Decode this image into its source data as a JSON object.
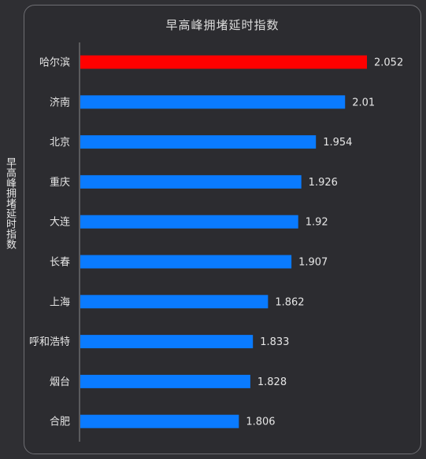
{
  "chart_data": {
    "type": "bar",
    "orientation": "horizontal",
    "title": "早高峰拥堵延时指数",
    "ylabel": "早高峰拥堵延时指数",
    "xlabel": "",
    "categories": [
      "哈尔滨",
      "济南",
      "北京",
      "重庆",
      "大连",
      "长春",
      "上海",
      "呼和浩特",
      "烟台",
      "合肥"
    ],
    "values": [
      2.052,
      2.01,
      1.954,
      1.926,
      1.92,
      1.907,
      1.862,
      1.833,
      1.828,
      1.806
    ],
    "value_labels": [
      "2.052",
      "2.01",
      "1.954",
      "1.926",
      "1.92",
      "1.907",
      "1.862",
      "1.833",
      "1.828",
      "1.806"
    ],
    "highlight_index": 0,
    "colors": {
      "highlight": "#ff0000",
      "bar": "#0a7bff",
      "text": "#e6e6e6",
      "axis": "#8a8a8a",
      "background": "#2f2f33"
    },
    "xlim": [
      1.5,
      2.11
    ],
    "grid": false,
    "legend": "none"
  }
}
